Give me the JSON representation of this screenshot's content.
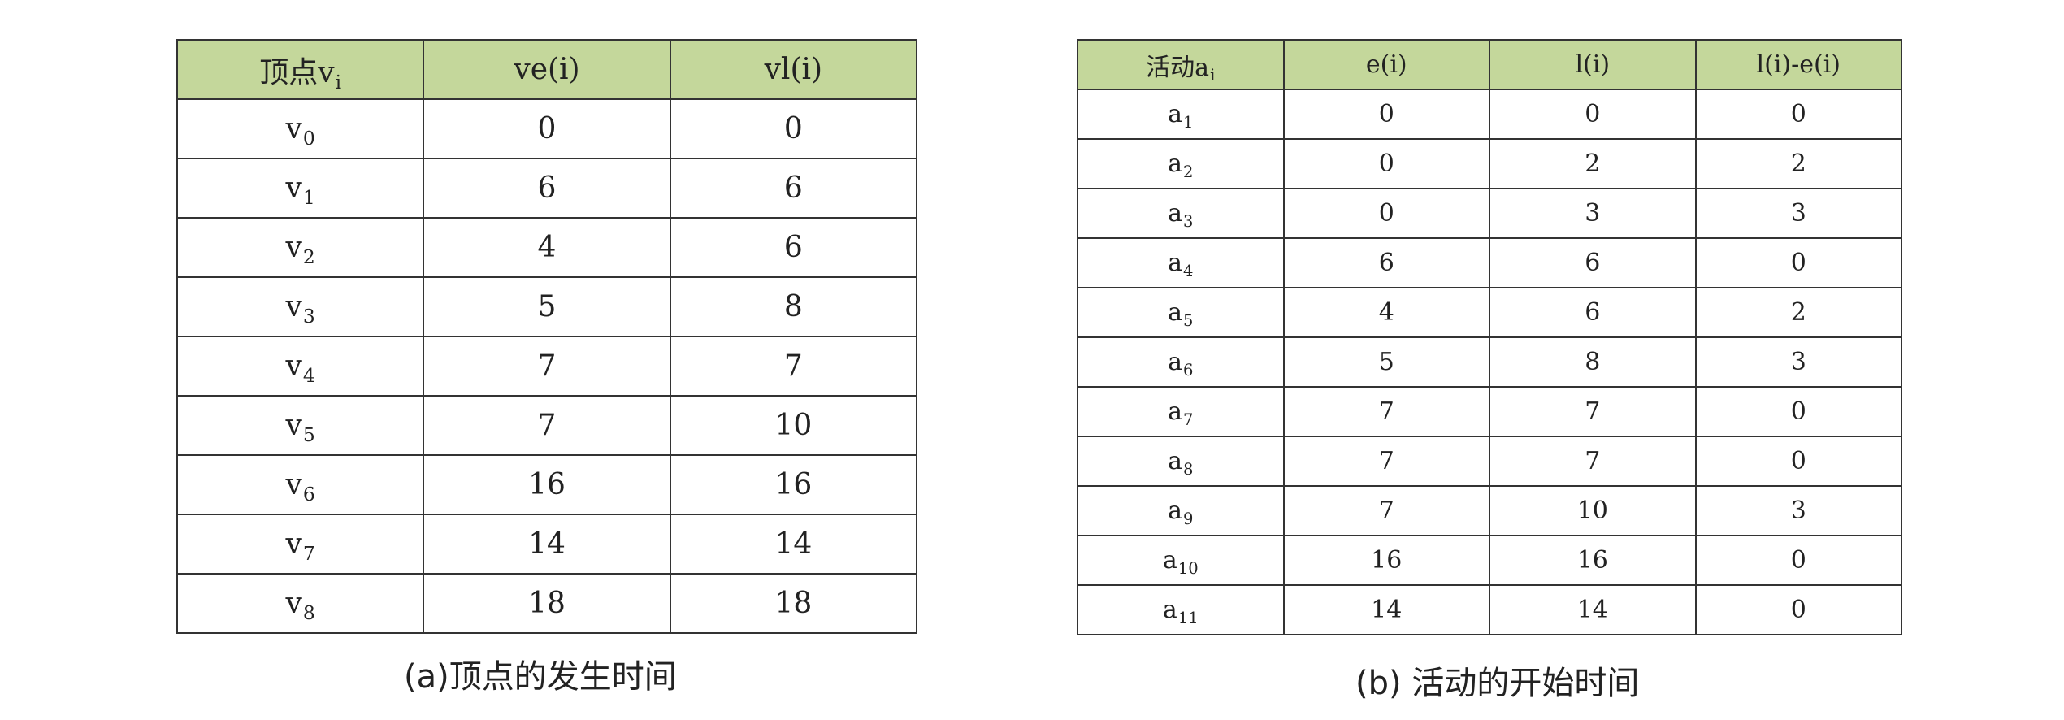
{
  "table_a": {
    "headers": [
      "顶点v",
      "ve(i)",
      "vl(i)"
    ],
    "header_sub": "i",
    "rows": [
      {
        "name": "v",
        "sub": "0",
        "ve": "0",
        "vl": "0"
      },
      {
        "name": "v",
        "sub": "1",
        "ve": "6",
        "vl": "6"
      },
      {
        "name": "v",
        "sub": "2",
        "ve": "4",
        "vl": "6"
      },
      {
        "name": "v",
        "sub": "3",
        "ve": "5",
        "vl": "8"
      },
      {
        "name": "v",
        "sub": "4",
        "ve": "7",
        "vl": "7"
      },
      {
        "name": "v",
        "sub": "5",
        "ve": "7",
        "vl": "10"
      },
      {
        "name": "v",
        "sub": "6",
        "ve": "16",
        "vl": "16"
      },
      {
        "name": "v",
        "sub": "7",
        "ve": "14",
        "vl": "14"
      },
      {
        "name": "v",
        "sub": "8",
        "ve": "18",
        "vl": "18"
      }
    ],
    "caption": "(a)顶点的发生时间"
  },
  "table_b": {
    "headers": [
      "活动a",
      "e(i)",
      "l(i)",
      "l(i)-e(i)"
    ],
    "header_sub": "i",
    "rows": [
      {
        "name": "a",
        "sub": "1",
        "e": "0",
        "l": "0",
        "d": "0"
      },
      {
        "name": "a",
        "sub": "2",
        "e": "0",
        "l": "2",
        "d": "2"
      },
      {
        "name": "a",
        "sub": "3",
        "e": "0",
        "l": "3",
        "d": "3"
      },
      {
        "name": "a",
        "sub": "4",
        "e": "6",
        "l": "6",
        "d": "0"
      },
      {
        "name": "a",
        "sub": "5",
        "e": "4",
        "l": "6",
        "d": "2"
      },
      {
        "name": "a",
        "sub": "6",
        "e": "5",
        "l": "8",
        "d": "3"
      },
      {
        "name": "a",
        "sub": "7",
        "e": "7",
        "l": "7",
        "d": "0"
      },
      {
        "name": "a",
        "sub": "8",
        "e": "7",
        "l": "7",
        "d": "0"
      },
      {
        "name": "a",
        "sub": "9",
        "e": "7",
        "l": "10",
        "d": "3"
      },
      {
        "name": "a",
        "sub": "10",
        "e": "16",
        "l": "16",
        "d": "0"
      },
      {
        "name": "a",
        "sub": "11",
        "e": "14",
        "l": "14",
        "d": "0"
      }
    ],
    "caption": "(b) 活动的开始时间"
  },
  "colors": {
    "header_bg": "#c4d79b",
    "border": "#333333"
  }
}
